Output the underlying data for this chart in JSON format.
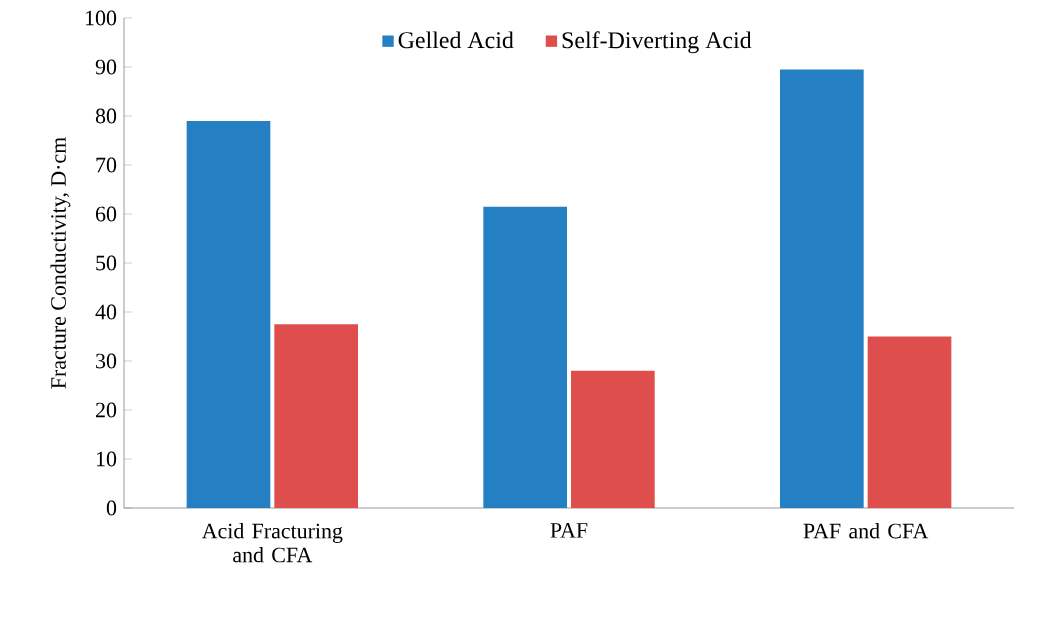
{
  "chart_data": {
    "type": "bar",
    "ylabel": "Fracture Conductivity, D·cm",
    "categories": [
      "Acid Fracturing and CFA",
      "PAF",
      "PAF and CFA"
    ],
    "series": [
      {
        "name": "Gelled Acid",
        "color": "#2580c3",
        "values": [
          79,
          61.5,
          89.5
        ]
      },
      {
        "name": "Self-Diverting Acid",
        "color": "#de4e4c",
        "values": [
          37.5,
          28,
          35
        ]
      }
    ],
    "ylim": [
      0,
      100
    ],
    "yticks": [
      0,
      10,
      20,
      30,
      40,
      50,
      60,
      70,
      80,
      90,
      100
    ],
    "legend": "top",
    "grid": false
  }
}
